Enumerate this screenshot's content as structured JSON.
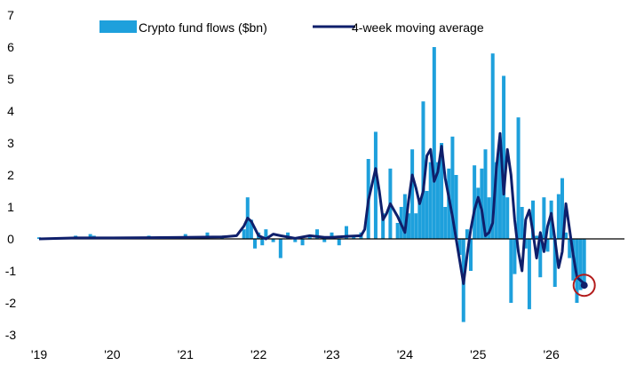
{
  "chart_data": {
    "type": "bar",
    "x_tick_labels": [
      "'19",
      "'20",
      "'21",
      "'22",
      "'23",
      "'24",
      "'25",
      "'26"
    ],
    "x_tick_years": [
      2019,
      2020,
      2021,
      2022,
      2023,
      2024,
      2025,
      2026
    ],
    "xlim": [
      2019.0,
      2027.0
    ],
    "ylim": [
      -3,
      7
    ],
    "yticks": [
      -3,
      -2,
      -1,
      0,
      1,
      2,
      3,
      4,
      5,
      6,
      7
    ],
    "grid": false,
    "legend": {
      "position": "top-center"
    },
    "colors": {
      "flows": "#1ea0dc",
      "ma": "#0f1f6b",
      "highlight": "#b31b1b",
      "axis": "#000000"
    },
    "series": [
      {
        "name": "Crypto fund flows ($bn)",
        "type": "bar",
        "x": [
          2019.0,
          2019.5,
          2019.7,
          2019.75,
          2020.0,
          2020.5,
          2021.0,
          2021.3,
          2021.5,
          2021.8,
          2021.85,
          2021.9,
          2021.95,
          2022.0,
          2022.05,
          2022.1,
          2022.2,
          2022.3,
          2022.4,
          2022.5,
          2022.6,
          2022.7,
          2022.8,
          2022.9,
          2023.0,
          2023.1,
          2023.2,
          2023.3,
          2023.4,
          2023.5,
          2023.6,
          2023.7,
          2023.8,
          2023.9,
          2023.95,
          2024.0,
          2024.05,
          2024.1,
          2024.15,
          2024.2,
          2024.25,
          2024.3,
          2024.35,
          2024.4,
          2024.45,
          2024.5,
          2024.55,
          2024.6,
          2024.65,
          2024.7,
          2024.75,
          2024.8,
          2024.85,
          2024.9,
          2024.95,
          2025.0,
          2025.05,
          2025.1,
          2025.15,
          2025.2,
          2025.25,
          2025.3,
          2025.35,
          2025.4,
          2025.45,
          2025.5,
          2025.55,
          2025.6,
          2025.65,
          2025.7,
          2025.75,
          2025.8,
          2025.85,
          2025.9,
          2025.95,
          2026.0,
          2026.05,
          2026.1,
          2026.15,
          2026.2,
          2026.25,
          2026.3,
          2026.35,
          2026.4,
          2026.45
        ],
        "values": [
          0.05,
          0.1,
          0.15,
          0.1,
          0.05,
          0.1,
          0.15,
          0.2,
          0.1,
          0.3,
          1.3,
          0.6,
          -0.3,
          0.2,
          -0.2,
          0.3,
          -0.1,
          -0.6,
          0.2,
          -0.1,
          -0.2,
          0.1,
          0.3,
          -0.1,
          0.2,
          -0.2,
          0.4,
          0.1,
          0.2,
          2.5,
          3.35,
          0.8,
          2.2,
          0.5,
          1.0,
          1.4,
          0.8,
          2.8,
          0.8,
          1.2,
          4.3,
          1.5,
          2.4,
          6.0,
          2.4,
          3.0,
          1.0,
          2.2,
          3.2,
          2.0,
          -0.5,
          -2.6,
          0.3,
          -1.0,
          2.3,
          1.6,
          2.2,
          2.8,
          1.3,
          5.8,
          2.4,
          2.9,
          5.1,
          1.3,
          -2.0,
          -1.1,
          3.8,
          1.0,
          -0.3,
          -2.2,
          1.2,
          0.1,
          -1.2,
          1.3,
          -0.4,
          1.2,
          -1.5,
          1.4,
          1.9,
          0.2,
          -0.6,
          -1.3,
          -2.0,
          -1.6,
          -1.4
        ]
      },
      {
        "name": "4-week moving average",
        "type": "line",
        "x": [
          2019.0,
          2019.5,
          2020.0,
          2020.5,
          2021.0,
          2021.5,
          2021.7,
          2021.8,
          2021.85,
          2021.9,
          2022.0,
          2022.1,
          2022.2,
          2022.3,
          2022.5,
          2022.7,
          2022.9,
          2023.0,
          2023.2,
          2023.4,
          2023.45,
          2023.5,
          2023.6,
          2023.65,
          2023.7,
          2023.75,
          2023.8,
          2023.9,
          2024.0,
          2024.05,
          2024.1,
          2024.15,
          2024.2,
          2024.25,
          2024.3,
          2024.35,
          2024.4,
          2024.45,
          2024.5,
          2024.55,
          2024.6,
          2024.65,
          2024.7,
          2024.75,
          2024.8,
          2024.85,
          2024.9,
          2024.95,
          2025.0,
          2025.05,
          2025.1,
          2025.15,
          2025.2,
          2025.25,
          2025.3,
          2025.35,
          2025.4,
          2025.45,
          2025.5,
          2025.55,
          2025.6,
          2025.65,
          2025.7,
          2025.75,
          2025.8,
          2025.85,
          2025.9,
          2025.95,
          2026.0,
          2026.05,
          2026.1,
          2026.15,
          2026.2,
          2026.25,
          2026.3,
          2026.35,
          2026.4,
          2026.45
        ],
        "values": [
          0.0,
          0.03,
          0.03,
          0.04,
          0.05,
          0.06,
          0.1,
          0.4,
          0.65,
          0.55,
          0.1,
          0.0,
          0.15,
          0.1,
          0.02,
          0.1,
          0.05,
          0.05,
          0.08,
          0.1,
          0.3,
          1.2,
          2.2,
          1.5,
          0.6,
          0.8,
          1.1,
          0.7,
          0.2,
          1.2,
          2.0,
          1.6,
          1.1,
          1.5,
          2.6,
          2.8,
          1.8,
          2.1,
          2.9,
          1.9,
          1.3,
          0.7,
          0.0,
          -0.7,
          -1.4,
          -0.5,
          0.3,
          0.9,
          1.3,
          0.9,
          0.1,
          0.2,
          0.5,
          2.2,
          3.3,
          1.4,
          2.8,
          2.0,
          0.6,
          -0.4,
          -1.0,
          0.6,
          0.9,
          0.2,
          -0.6,
          0.2,
          -0.4,
          0.4,
          0.8,
          0.0,
          -0.9,
          -0.4,
          1.1,
          0.3,
          -0.5,
          -1.2,
          -1.3,
          -1.4
        ]
      }
    ],
    "annotation": {
      "x": 2026.45,
      "y": -1.45
    }
  }
}
